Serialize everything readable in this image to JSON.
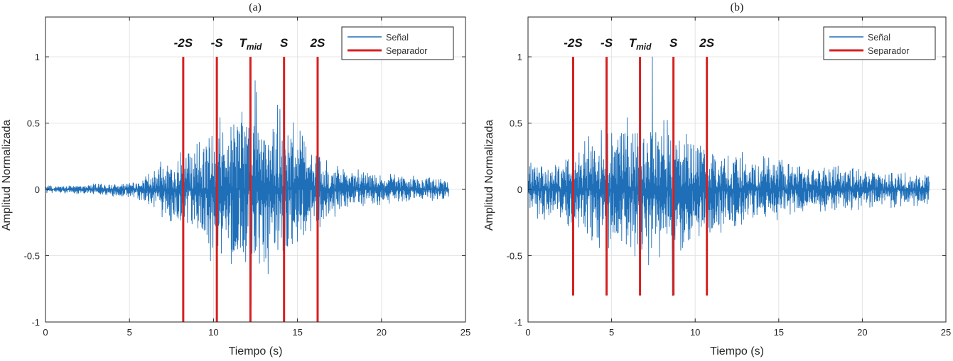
{
  "chart_data": [
    {
      "panel_label": "(a)",
      "type": "line",
      "xlabel": "Tiempo (s)",
      "ylabel": "Amplitud Normalizada",
      "xlim": [
        0,
        25
      ],
      "ylim": [
        -1,
        1.3
      ],
      "xticks": [
        0,
        5,
        10,
        15,
        20,
        25
      ],
      "yticks": [
        -1,
        -0.5,
        0,
        0.5,
        1
      ],
      "ytick_labels": [
        "-1",
        "-0.5",
        "0",
        "0.5",
        "1"
      ],
      "grid": true,
      "legend": {
        "placement": "top-right",
        "entries": [
          "Señal",
          "Separador"
        ]
      },
      "series": [
        {
          "name": "Señal",
          "color": "#1f6fb8",
          "duration": 24,
          "envelope": [
            [
              0,
              0.03
            ],
            [
              1,
              0.03
            ],
            [
              3,
              0.05
            ],
            [
              5,
              0.06
            ],
            [
              6,
              0.12
            ],
            [
              7,
              0.22
            ],
            [
              8,
              0.3
            ],
            [
              9,
              0.42
            ],
            [
              10,
              0.55
            ],
            [
              11,
              0.68
            ],
            [
              12,
              0.75
            ],
            [
              13,
              0.68
            ],
            [
              14,
              0.6
            ],
            [
              15,
              0.48
            ],
            [
              16,
              0.35
            ],
            [
              17,
              0.22
            ],
            [
              18,
              0.16
            ],
            [
              20,
              0.12
            ],
            [
              22,
              0.1
            ],
            [
              24,
              0.08
            ]
          ],
          "peak_max": 0.82,
          "peak_min": -0.88
        },
        {
          "name": "Separador",
          "color": "#d62020",
          "lines": [
            {
              "x": 8.2,
              "label_main": "-2S",
              "label_sub": ""
            },
            {
              "x": 10.2,
              "label_main": "-S",
              "label_sub": ""
            },
            {
              "x": 12.2,
              "label_main": "T",
              "label_sub": "mid"
            },
            {
              "x": 14.2,
              "label_main": "S",
              "label_sub": ""
            },
            {
              "x": 16.2,
              "label_main": "2S",
              "label_sub": ""
            }
          ],
          "y_range": [
            -1,
            1
          ]
        }
      ]
    },
    {
      "panel_label": "(b)",
      "type": "line",
      "xlabel": "Tiempo (s)",
      "ylabel": "Amplitud Normalizada",
      "xlim": [
        0,
        25
      ],
      "ylim": [
        -1,
        1.3
      ],
      "xticks": [
        0,
        5,
        10,
        15,
        20,
        25
      ],
      "yticks": [
        -1,
        -0.5,
        0,
        0.5,
        1
      ],
      "ytick_labels": [
        "-1",
        "-0.5",
        "0",
        "0.5",
        "1"
      ],
      "grid": true,
      "legend": {
        "placement": "top-right",
        "entries": [
          "Señal",
          "Separador"
        ]
      },
      "series": [
        {
          "name": "Señal",
          "color": "#1f6fb8",
          "duration": 24,
          "envelope": [
            [
              0,
              0.2
            ],
            [
              2,
              0.24
            ],
            [
              3,
              0.36
            ],
            [
              4,
              0.45
            ],
            [
              5,
              0.5
            ],
            [
              6,
              0.52
            ],
            [
              7,
              0.55
            ],
            [
              8,
              0.56
            ],
            [
              9,
              0.52
            ],
            [
              10,
              0.42
            ],
            [
              11,
              0.34
            ],
            [
              12,
              0.3
            ],
            [
              14,
              0.26
            ],
            [
              16,
              0.22
            ],
            [
              18,
              0.18
            ],
            [
              20,
              0.16
            ],
            [
              22,
              0.14
            ],
            [
              24,
              0.12
            ]
          ],
          "peak_max": 1.0,
          "peak_min": -0.8
        },
        {
          "name": "Separador",
          "color": "#d62020",
          "lines": [
            {
              "x": 2.7,
              "label_main": "-2S",
              "label_sub": ""
            },
            {
              "x": 4.7,
              "label_main": "-S",
              "label_sub": ""
            },
            {
              "x": 6.7,
              "label_main": "T",
              "label_sub": "mid"
            },
            {
              "x": 8.7,
              "label_main": "S",
              "label_sub": ""
            },
            {
              "x": 10.7,
              "label_main": "2S",
              "label_sub": ""
            }
          ],
          "y_range": [
            -0.8,
            1
          ]
        }
      ]
    }
  ]
}
